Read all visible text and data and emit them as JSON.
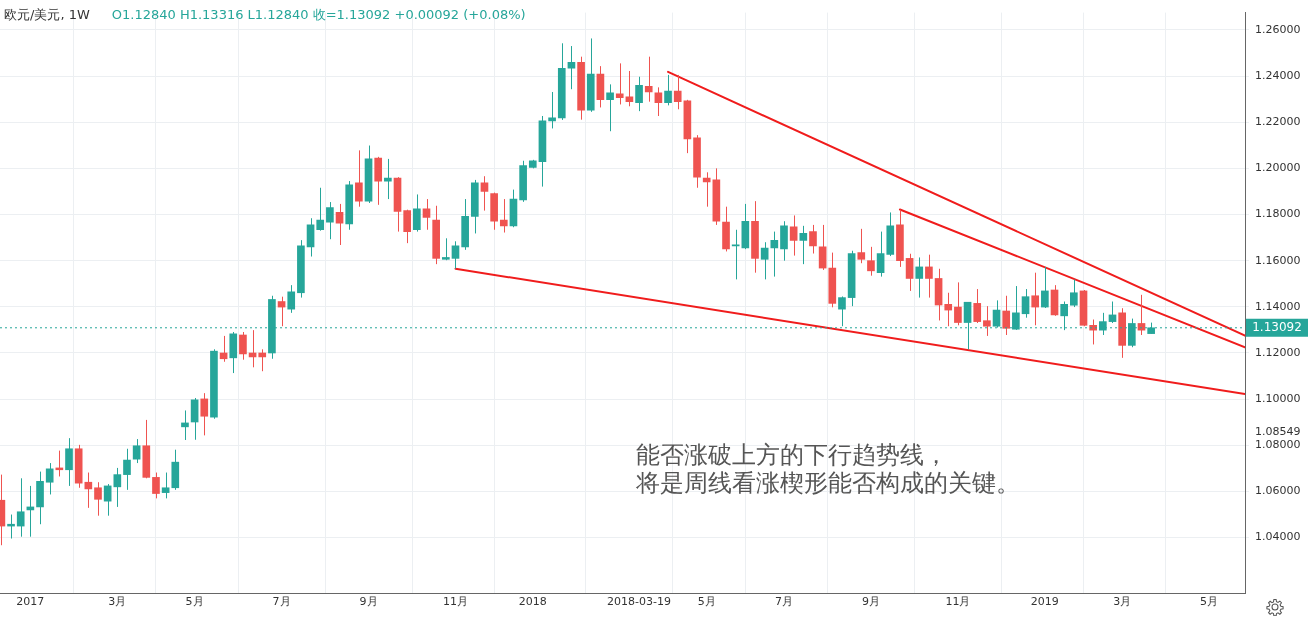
{
  "chart_data": {
    "type": "candlestick",
    "title": "欧元/美元, 1W",
    "subtitle": "O1.12840 H1.13316 L1.12840 收=1.13092 +0.00092 (+0.08%)",
    "x": [
      "2016-12-12",
      "2016-12-19",
      "2016-12-26",
      "2017-01-02",
      "2017-01-09",
      "2017-01-16",
      "2017-01-23",
      "2017-01-30",
      "2017-02-06",
      "2017-02-13",
      "2017-02-20",
      "2017-02-27",
      "2017-03-06",
      "2017-03-13",
      "2017-03-20",
      "2017-03-27",
      "2017-04-03",
      "2017-04-10",
      "2017-04-17",
      "2017-04-24",
      "2017-05-01",
      "2017-05-08",
      "2017-05-15",
      "2017-05-22",
      "2017-05-29",
      "2017-06-05",
      "2017-06-12",
      "2017-06-19",
      "2017-06-26",
      "2017-07-03",
      "2017-07-10",
      "2017-07-17",
      "2017-07-24",
      "2017-07-31",
      "2017-08-07",
      "2017-08-14",
      "2017-08-21",
      "2017-08-28",
      "2017-09-04",
      "2017-09-11",
      "2017-09-18",
      "2017-09-25",
      "2017-10-02",
      "2017-10-09",
      "2017-10-16",
      "2017-10-23",
      "2017-10-30",
      "2017-11-06",
      "2017-11-13",
      "2017-11-20",
      "2017-11-27",
      "2017-12-04",
      "2017-12-11",
      "2017-12-18",
      "2017-12-25",
      "2018-01-01",
      "2018-01-08",
      "2018-01-15",
      "2018-01-22",
      "2018-01-29",
      "2018-02-05",
      "2018-02-12",
      "2018-02-19",
      "2018-02-26",
      "2018-03-05",
      "2018-03-12",
      "2018-03-19",
      "2018-03-26",
      "2018-04-02",
      "2018-04-09",
      "2018-04-16",
      "2018-04-23",
      "2018-04-30",
      "2018-05-07",
      "2018-05-14",
      "2018-05-21",
      "2018-05-28",
      "2018-06-04",
      "2018-06-11",
      "2018-06-18",
      "2018-06-25",
      "2018-07-02",
      "2018-07-09",
      "2018-07-16",
      "2018-07-23",
      "2018-07-30",
      "2018-08-06",
      "2018-08-13",
      "2018-08-20",
      "2018-08-27",
      "2018-09-03",
      "2018-09-10",
      "2018-09-17",
      "2018-09-24",
      "2018-10-01",
      "2018-10-08",
      "2018-10-15",
      "2018-10-22",
      "2018-10-29",
      "2018-11-05",
      "2018-11-12",
      "2018-11-19",
      "2018-11-26",
      "2018-12-03",
      "2018-12-10",
      "2018-12-17",
      "2018-12-24",
      "2018-12-31",
      "2019-01-07",
      "2019-01-14",
      "2019-01-21",
      "2019-01-28",
      "2019-02-04",
      "2019-02-11",
      "2019-02-18",
      "2019-02-25",
      "2019-03-04",
      "2019-03-11",
      "2019-03-18",
      "2019-03-25"
    ],
    "ohlc": [
      [
        1.0562,
        1.0673,
        1.0367,
        1.045
      ],
      [
        1.045,
        1.05,
        1.0396,
        1.0458
      ],
      [
        1.045,
        1.0657,
        1.0404,
        1.0512
      ],
      [
        1.052,
        1.0624,
        1.0404,
        1.0533
      ],
      [
        1.0533,
        1.0686,
        1.0458,
        1.0644
      ],
      [
        1.064,
        1.0723,
        1.0587,
        1.0698
      ],
      [
        1.0702,
        1.0777,
        1.0665,
        1.0694
      ],
      [
        1.0694,
        1.0831,
        1.0624,
        1.0785
      ],
      [
        1.0785,
        1.0802,
        1.0616,
        1.0636
      ],
      [
        1.064,
        1.0682,
        1.0529,
        1.0611
      ],
      [
        1.0616,
        1.064,
        1.0495,
        1.0566
      ],
      [
        1.0558,
        1.0632,
        1.0495,
        1.0624
      ],
      [
        1.062,
        1.0702,
        1.0533,
        1.0673
      ],
      [
        1.0673,
        1.0785,
        1.0607,
        1.0736
      ],
      [
        1.074,
        1.0827,
        1.0723,
        1.0798
      ],
      [
        1.0798,
        1.091,
        1.0657,
        1.0661
      ],
      [
        1.0661,
        1.0682,
        1.057,
        1.0591
      ],
      [
        1.0595,
        1.0682,
        1.057,
        1.0616
      ],
      [
        1.0616,
        1.0781,
        1.0607,
        1.0727
      ],
      [
        1.088,
        1.0951,
        1.0823,
        1.0897
      ],
      [
        1.0901,
        1.1005,
        1.0824,
        1.0997
      ],
      [
        1.1001,
        1.1026,
        1.0843,
        1.0926
      ],
      [
        1.0922,
        1.1216,
        1.0915,
        1.1208
      ],
      [
        1.12,
        1.1274,
        1.1162,
        1.1175
      ],
      [
        1.1179,
        1.1291,
        1.1113,
        1.1283
      ],
      [
        1.1278,
        1.1291,
        1.1171,
        1.1196
      ],
      [
        1.12,
        1.1299,
        1.1138,
        1.1183
      ],
      [
        1.12,
        1.1216,
        1.1121,
        1.1183
      ],
      [
        1.12,
        1.1448,
        1.1175,
        1.1432
      ],
      [
        1.1423,
        1.1444,
        1.1316,
        1.1399
      ],
      [
        1.139,
        1.1494,
        1.1374,
        1.1465
      ],
      [
        1.1461,
        1.1689,
        1.144,
        1.1664
      ],
      [
        1.166,
        1.1784,
        1.1618,
        1.1755
      ],
      [
        1.1734,
        1.1916,
        1.173,
        1.1776
      ],
      [
        1.1767,
        1.1854,
        1.1693,
        1.183
      ],
      [
        1.1809,
        1.1846,
        1.1668,
        1.1763
      ],
      [
        1.1759,
        1.1945,
        1.1734,
        1.1929
      ],
      [
        1.1937,
        1.2078,
        1.1834,
        1.1858
      ],
      [
        1.1858,
        1.2099,
        1.185,
        1.2041
      ],
      [
        1.2045,
        1.205,
        1.1842,
        1.1945
      ],
      [
        1.1945,
        1.2041,
        1.1867,
        1.1958
      ],
      [
        1.1958,
        1.1962,
        1.1726,
        1.1813
      ],
      [
        1.1817,
        1.1821,
        1.1676,
        1.1726
      ],
      [
        1.1734,
        1.1887,
        1.1726,
        1.1825
      ],
      [
        1.1825,
        1.1867,
        1.1734,
        1.1788
      ],
      [
        1.1776,
        1.1838,
        1.1585,
        1.161
      ],
      [
        1.1606,
        1.1697,
        1.1602,
        1.1614
      ],
      [
        1.161,
        1.1684,
        1.1565,
        1.1664
      ],
      [
        1.166,
        1.1867,
        1.1647,
        1.1792
      ],
      [
        1.1792,
        1.195,
        1.1718,
        1.1937
      ],
      [
        1.1937,
        1.1966,
        1.1817,
        1.19
      ],
      [
        1.1891,
        1.1895,
        1.1734,
        1.1771
      ],
      [
        1.1776,
        1.1867,
        1.1722,
        1.1751
      ],
      [
        1.1751,
        1.1908,
        1.1745,
        1.1867
      ],
      [
        1.1863,
        1.2033,
        1.1855,
        1.2012
      ],
      [
        1.2004,
        1.2037,
        1.2,
        1.2033
      ],
      [
        1.2029,
        1.2227,
        1.1921,
        1.2206
      ],
      [
        1.2206,
        1.2331,
        1.2173,
        1.2219
      ],
      [
        1.2219,
        1.2542,
        1.221,
        1.2434
      ],
      [
        1.2434,
        1.253,
        1.2343,
        1.2459
      ],
      [
        1.2459,
        1.2484,
        1.2211,
        1.2252
      ],
      [
        1.2252,
        1.2563,
        1.2245,
        1.2409
      ],
      [
        1.2409,
        1.2443,
        1.2264,
        1.2298
      ],
      [
        1.2298,
        1.2364,
        1.2161,
        1.2327
      ],
      [
        1.2323,
        1.2455,
        1.2277,
        1.2306
      ],
      [
        1.231,
        1.2422,
        1.2269,
        1.2289
      ],
      [
        1.2285,
        1.2397,
        1.2248,
        1.236
      ],
      [
        1.2356,
        1.2484,
        1.2289,
        1.2331
      ],
      [
        1.2327,
        1.2351,
        1.2227,
        1.2285
      ],
      [
        1.2285,
        1.2405,
        1.2273,
        1.2335
      ],
      [
        1.2335,
        1.2405,
        1.2256,
        1.2289
      ],
      [
        1.2293,
        1.2297,
        1.2066,
        1.2128
      ],
      [
        1.2132,
        1.2144,
        1.1916,
        1.1962
      ],
      [
        1.1958,
        1.1983,
        1.1834,
        1.1941
      ],
      [
        1.195,
        1.2,
        1.1755,
        1.1771
      ],
      [
        1.1767,
        1.1834,
        1.164,
        1.1651
      ],
      [
        1.1664,
        1.1734,
        1.1519,
        1.1668
      ],
      [
        1.1655,
        1.1846,
        1.165,
        1.1771
      ],
      [
        1.1771,
        1.1858,
        1.1548,
        1.161
      ],
      [
        1.1606,
        1.168,
        1.1519,
        1.1655
      ],
      [
        1.1655,
        1.1726,
        1.1531,
        1.1688
      ],
      [
        1.1651,
        1.1771,
        1.16,
        1.1751
      ],
      [
        1.1747,
        1.1796,
        1.1622,
        1.1688
      ],
      [
        1.1688,
        1.1751,
        1.1585,
        1.1718
      ],
      [
        1.1726,
        1.1755,
        1.1631,
        1.1664
      ],
      [
        1.166,
        1.1755,
        1.156,
        1.1568
      ],
      [
        1.1568,
        1.1635,
        1.1398,
        1.1415
      ],
      [
        1.139,
        1.1445,
        1.1316,
        1.144
      ],
      [
        1.144,
        1.1643,
        1.1403,
        1.1631
      ],
      [
        1.1635,
        1.1738,
        1.1589,
        1.1606
      ],
      [
        1.16,
        1.166,
        1.1535,
        1.1556
      ],
      [
        1.1548,
        1.1726,
        1.1531,
        1.1631
      ],
      [
        1.1627,
        1.1809,
        1.162,
        1.1751
      ],
      [
        1.1755,
        1.1821,
        1.1573,
        1.16
      ],
      [
        1.161,
        1.163,
        1.1469,
        1.1523
      ],
      [
        1.1523,
        1.1614,
        1.144,
        1.1573
      ],
      [
        1.1573,
        1.1626,
        1.144,
        1.1523
      ],
      [
        1.1523,
        1.1565,
        1.1341,
        1.1408
      ],
      [
        1.1411,
        1.1461,
        1.1316,
        1.1386
      ],
      [
        1.1399,
        1.1506,
        1.132,
        1.1332
      ],
      [
        1.1332,
        1.142,
        1.1216,
        1.142
      ],
      [
        1.1415,
        1.1477,
        1.133,
        1.1336
      ],
      [
        1.134,
        1.1403,
        1.1274,
        1.1316
      ],
      [
        1.1316,
        1.1428,
        1.131,
        1.1386
      ],
      [
        1.1382,
        1.1448,
        1.1278,
        1.1307
      ],
      [
        1.1303,
        1.149,
        1.13,
        1.1374
      ],
      [
        1.137,
        1.1477,
        1.1353,
        1.1444
      ],
      [
        1.1448,
        1.1548,
        1.132,
        1.1399
      ],
      [
        1.1399,
        1.1573,
        1.1395,
        1.1469
      ],
      [
        1.1473,
        1.1494,
        1.1361,
        1.1365
      ],
      [
        1.1361,
        1.1423,
        1.1299,
        1.1411
      ],
      [
        1.1407,
        1.1519,
        1.1399,
        1.1461
      ],
      [
        1.1469,
        1.1473,
        1.1316,
        1.132
      ],
      [
        1.132,
        1.1345,
        1.1237,
        1.1299
      ],
      [
        1.1299,
        1.1374,
        1.1278,
        1.1336
      ],
      [
        1.1336,
        1.1423,
        1.133,
        1.1365
      ],
      [
        1.1374,
        1.1394,
        1.1179,
        1.1233
      ],
      [
        1.1233,
        1.1349,
        1.1225,
        1.1328
      ],
      [
        1.1328,
        1.1452,
        1.1278,
        1.1299
      ],
      [
        1.1284,
        1.13316,
        1.1284,
        1.13092
      ]
    ],
    "colors": [
      "#ef5350",
      "#26a69a",
      "#26a69a",
      "#26a69a",
      "#26a69a",
      "#26a69a",
      "#ef5350",
      "#26a69a",
      "#ef5350",
      "#ef5350",
      "#ef5350",
      "#26a69a",
      "#26a69a",
      "#26a69a",
      "#26a69a",
      "#ef5350",
      "#ef5350",
      "#26a69a",
      "#26a69a",
      "#26a69a",
      "#26a69a",
      "#ef5350",
      "#26a69a",
      "#ef5350",
      "#26a69a",
      "#ef5350",
      "#ef5350",
      "#ef5350",
      "#26a69a",
      "#ef5350",
      "#26a69a",
      "#26a69a",
      "#26a69a",
      "#26a69a",
      "#26a69a",
      "#ef5350",
      "#26a69a",
      "#ef5350",
      "#26a69a",
      "#ef5350",
      "#26a69a",
      "#ef5350",
      "#ef5350",
      "#26a69a",
      "#ef5350",
      "#ef5350",
      "#26a69a",
      "#26a69a",
      "#26a69a",
      "#26a69a",
      "#ef5350",
      "#ef5350",
      "#ef5350",
      "#26a69a",
      "#26a69a",
      "#26a69a",
      "#26a69a",
      "#26a69a",
      "#26a69a",
      "#26a69a",
      "#ef5350",
      "#26a69a",
      "#ef5350",
      "#26a69a",
      "#ef5350",
      "#ef5350",
      "#26a69a",
      "#ef5350",
      "#ef5350",
      "#26a69a",
      "#ef5350",
      "#ef5350",
      "#ef5350",
      "#ef5350",
      "#ef5350",
      "#ef5350",
      "#26a69a",
      "#26a69a",
      "#ef5350",
      "#26a69a",
      "#26a69a",
      "#26a69a",
      "#ef5350",
      "#26a69a",
      "#ef5350",
      "#ef5350",
      "#ef5350",
      "#26a69a",
      "#26a69a",
      "#ef5350",
      "#ef5350",
      "#26a69a",
      "#26a69a",
      "#ef5350",
      "#ef5350",
      "#26a69a",
      "#ef5350",
      "#ef5350",
      "#ef5350",
      "#ef5350",
      "#26a69a",
      "#ef5350",
      "#ef5350",
      "#26a69a",
      "#ef5350",
      "#26a69a",
      "#26a69a",
      "#ef5350",
      "#26a69a",
      "#ef5350",
      "#26a69a",
      "#26a69a",
      "#ef5350",
      "#ef5350",
      "#26a69a",
      "#26a69a",
      "#ef5350",
      "#26a69a",
      "#ef5350",
      "#26a69a"
    ],
    "series": [
      {
        "type": "line",
        "color": "#f01c1c",
        "x": [
          "2018-04-09",
          "2019-06-01"
        ],
        "values": [
          1.2418,
          1.1275
        ]
      },
      {
        "type": "line",
        "color": "#f01c1c",
        "x": [
          "2018-09-24",
          "2019-06-01"
        ],
        "values": [
          1.1822,
          1.1225
        ]
      },
      {
        "type": "line",
        "color": "#f01c1c",
        "x": [
          "2017-11-06",
          "2019-06-01"
        ],
        "values": [
          1.1565,
          1.1022
        ]
      }
    ],
    "xlim": [
      "2016-12-11",
      "2019-06-01"
    ],
    "xticks": [
      {
        "value": "2017-01-02",
        "label": "2017"
      },
      {
        "value": "2017-03-06",
        "label": "3月"
      },
      {
        "value": "2017-05-01",
        "label": "5月"
      },
      {
        "value": "2017-07-03",
        "label": "7月"
      },
      {
        "value": "2017-09-04",
        "label": "9月"
      },
      {
        "value": "2017-11-06",
        "label": "11月"
      },
      {
        "value": "2018-01-01",
        "label": "2018"
      },
      {
        "value": "2018-03-19",
        "label": "2018-03-19"
      },
      {
        "value": "2018-05-07",
        "label": "5月"
      },
      {
        "value": "2018-07-02",
        "label": "7月"
      },
      {
        "value": "2018-09-03",
        "label": "9月"
      },
      {
        "value": "2018-11-05",
        "label": "11月"
      },
      {
        "value": "2019-01-07",
        "label": "2019"
      },
      {
        "value": "2019-03-04",
        "label": "3月"
      },
      {
        "value": "2019-05-06",
        "label": "5月"
      }
    ],
    "ylim": [
      1.016,
      1.2675
    ],
    "yticks": [
      {
        "value": 1.04,
        "label": "1.04000"
      },
      {
        "value": 1.06,
        "label": "1.06000"
      },
      {
        "value": 1.08,
        "label": "1.08000"
      },
      {
        "value": 1.08549,
        "label": "1.08549"
      },
      {
        "value": 1.1,
        "label": "1.10000"
      },
      {
        "value": 1.12,
        "label": "1.12000"
      },
      {
        "value": 1.14,
        "label": "1.14000"
      },
      {
        "value": 1.16,
        "label": "1.16000"
      },
      {
        "value": 1.18,
        "label": "1.18000"
      },
      {
        "value": 1.2,
        "label": "1.20000"
      },
      {
        "value": 1.22,
        "label": "1.22000"
      },
      {
        "value": 1.24,
        "label": "1.24000"
      },
      {
        "value": 1.26,
        "label": "1.26000"
      }
    ],
    "ref_lines": [
      {
        "axis": "y",
        "value": 1.13092,
        "label": "1.13092",
        "color": "#26a69a",
        "line_style": "dotted"
      }
    ],
    "annotations": [
      "能否涨破上方的下行趋势线，",
      "将是周线看涨楔形能否构成的关键。"
    ],
    "grid": true,
    "legend": false
  }
}
